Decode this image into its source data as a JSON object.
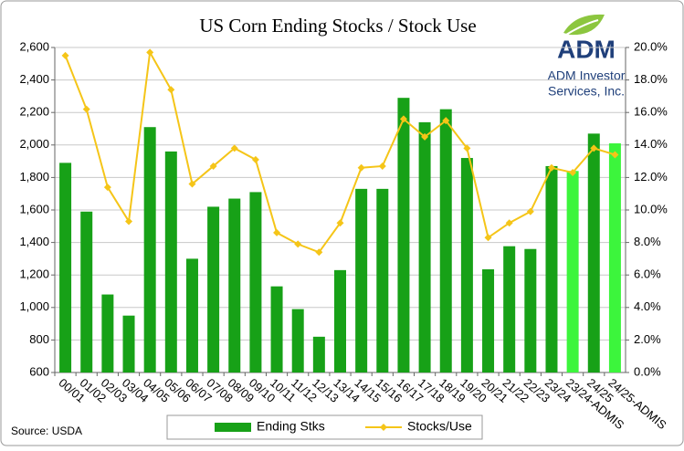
{
  "chart_data": {
    "type": "bar-line",
    "title": "US Corn Ending Stocks / Stock Use",
    "source": "Source: USDA",
    "logo": {
      "mark": "ADM",
      "line1": "ADM Investor",
      "line2": "Services, Inc."
    },
    "categories": [
      "00/01",
      "01/02",
      "02/03",
      "03/04",
      "04/05",
      "05/06",
      "06/07",
      "07/08",
      "08/09",
      "09/10",
      "10/11",
      "11/12",
      "12/13",
      "13/14",
      "14/15",
      "15/16",
      "16/17",
      "17/18",
      "18/19",
      "19/20",
      "20/21",
      "21/22",
      "22/23",
      "23/24",
      "23/24-ADMIS",
      "24/25",
      "24/25-ADMIS"
    ],
    "series": [
      {
        "name": "Ending Stks",
        "type": "bar",
        "color": "#17a117",
        "point_colors": [
          "#17a117",
          "#17a117",
          "#17a117",
          "#17a117",
          "#17a117",
          "#17a117",
          "#17a117",
          "#17a117",
          "#17a117",
          "#17a117",
          "#17a117",
          "#17a117",
          "#17a117",
          "#17a117",
          "#17a117",
          "#17a117",
          "#17a117",
          "#17a117",
          "#17a117",
          "#17a117",
          "#17a117",
          "#17a117",
          "#17a117",
          "#17a117",
          "#3cf53c",
          "#17a117",
          "#3cf53c"
        ],
        "values": [
          1890,
          1590,
          1080,
          950,
          2110,
          1960,
          1300,
          1620,
          1670,
          1710,
          1130,
          990,
          820,
          1230,
          1730,
          1730,
          2290,
          2140,
          2220,
          1920,
          1235,
          1377,
          1360,
          1870,
          1840,
          2070,
          2010
        ]
      },
      {
        "name": "Stocks/Use",
        "type": "line",
        "axis": "y2",
        "color": "#f5c518",
        "values": [
          19.5,
          16.2,
          11.4,
          9.3,
          19.7,
          17.4,
          11.6,
          12.7,
          13.8,
          13.1,
          8.6,
          7.9,
          7.4,
          9.2,
          12.6,
          12.7,
          15.6,
          14.5,
          15.5,
          13.8,
          8.3,
          9.2,
          9.9,
          12.6,
          12.3,
          13.8,
          13.4
        ]
      }
    ],
    "ylim": [
      600,
      2600
    ],
    "yticks": [
      {
        "value": 600,
        "label": "600"
      },
      {
        "value": 800,
        "label": "800"
      },
      {
        "value": 1000,
        "label": "1,000"
      },
      {
        "value": 1200,
        "label": "1,200"
      },
      {
        "value": 1400,
        "label": "1,400"
      },
      {
        "value": 1600,
        "label": "1,600"
      },
      {
        "value": 1800,
        "label": "1,800"
      },
      {
        "value": 2000,
        "label": "2,000"
      },
      {
        "value": 2200,
        "label": "2,200"
      },
      {
        "value": 2400,
        "label": "2,400"
      },
      {
        "value": 2600,
        "label": "2,600"
      }
    ],
    "y2lim": [
      0,
      20
    ],
    "y2ticks": [
      {
        "value": 0,
        "label": "0.0%"
      },
      {
        "value": 2,
        "label": "2.0%"
      },
      {
        "value": 4,
        "label": "4.0%"
      },
      {
        "value": 6,
        "label": "6.0%"
      },
      {
        "value": 8,
        "label": "8.0%"
      },
      {
        "value": 10,
        "label": "10.0%"
      },
      {
        "value": 12,
        "label": "12.0%"
      },
      {
        "value": 14,
        "label": "14.0%"
      },
      {
        "value": 16,
        "label": "16.0%"
      },
      {
        "value": 18,
        "label": "18.0%"
      },
      {
        "value": 20,
        "label": "20.0%"
      }
    ],
    "grid": true,
    "legend": "bottom"
  }
}
